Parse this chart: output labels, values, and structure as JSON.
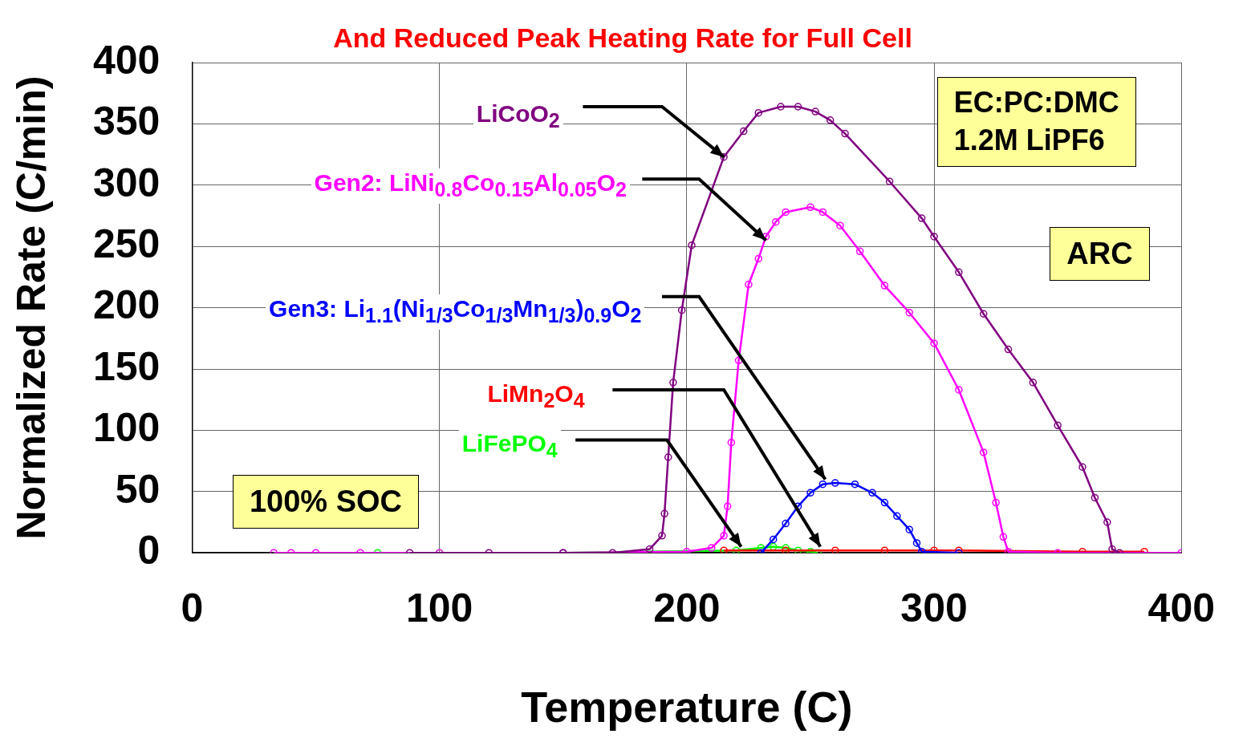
{
  "chart_data": {
    "type": "line",
    "title": "And Reduced Peak Heating Rate for Full Cell",
    "xlabel": "Temperature (C)",
    "ylabel": "Normalized Rate (C/min)",
    "xlim": [
      0,
      400
    ],
    "xticks": [
      0,
      100,
      200,
      300,
      400
    ],
    "ylim": [
      0,
      400
    ],
    "yticks": [
      0,
      50,
      100,
      150,
      200,
      250,
      300,
      350,
      400
    ],
    "grid": true,
    "legend": false,
    "marker": "circle",
    "line_style": "solid",
    "annotations": [
      "EC:PC:DMC\n1.2M LiPF6",
      "ARC",
      "100% SOC"
    ],
    "series": [
      {
        "name": "LiCoO$_{2}$",
        "color": "#800080",
        "x": [
          88,
          120,
          150,
          170,
          185,
          190,
          191,
          192.5,
          194.5,
          198,
          202,
          215,
          223,
          229,
          238,
          245,
          252,
          258,
          264,
          282,
          295,
          300,
          310,
          320,
          330,
          340,
          350,
          360,
          365,
          370,
          372,
          375
        ],
        "values": [
          0,
          0,
          0,
          0,
          3,
          14,
          32,
          78,
          139,
          198,
          251,
          323,
          344,
          359,
          364,
          364,
          360,
          353,
          342,
          303,
          273,
          258,
          229,
          195,
          166,
          139,
          104,
          70,
          45,
          25,
          3,
          0
        ]
      },
      {
        "name": "Gen2: LiNi$_{0.8}$Co$_{0.15}$Al$_{0.05}$O$_{2}$",
        "color": "#ff00ff",
        "x": [
          33,
          40,
          50,
          68,
          100,
          150,
          200,
          210,
          215,
          216.5,
          218,
          221,
          225,
          229,
          232,
          236,
          240,
          250,
          255,
          262,
          270,
          280,
          290,
          300,
          310,
          320,
          325,
          328,
          330,
          350,
          400
        ],
        "values": [
          0,
          0,
          0,
          0,
          0,
          0,
          1,
          4,
          14,
          38,
          90,
          157,
          219,
          240,
          258,
          270,
          278,
          282,
          278,
          267,
          246,
          218,
          196,
          171,
          133,
          82,
          41,
          13,
          1,
          0,
          0
        ]
      },
      {
        "name": "Gen3: Li$_{1.1}$(Ni$_{1/3}$Co$_{1/3}$Mn$_{1/3}$)$_{0.9}$O$_{2}$",
        "color": "#0000ff",
        "x": [
          230,
          235,
          240,
          245,
          250,
          255,
          260,
          268,
          275,
          280,
          285,
          290,
          293,
          295,
          310
        ],
        "values": [
          0,
          11,
          24,
          38,
          49,
          56,
          57,
          56,
          49,
          41,
          30,
          19,
          8,
          1,
          0
        ]
      },
      {
        "name": "LiMn$_{2}$O$_{4}$",
        "color": "#ff0000",
        "x": [
          215,
          240,
          260,
          280,
          300,
          310,
          360,
          385
        ],
        "values": [
          2,
          2,
          2,
          2,
          2,
          2,
          1,
          1
        ]
      },
      {
        "name": "LiFePO$_{4}$",
        "color": "#00ff00",
        "x": [
          75,
          100,
          150,
          220,
          230,
          235,
          240,
          245,
          250,
          253
        ],
        "values": [
          0,
          0,
          0,
          2,
          4,
          5,
          4,
          2,
          1,
          0
        ]
      }
    ]
  }
}
